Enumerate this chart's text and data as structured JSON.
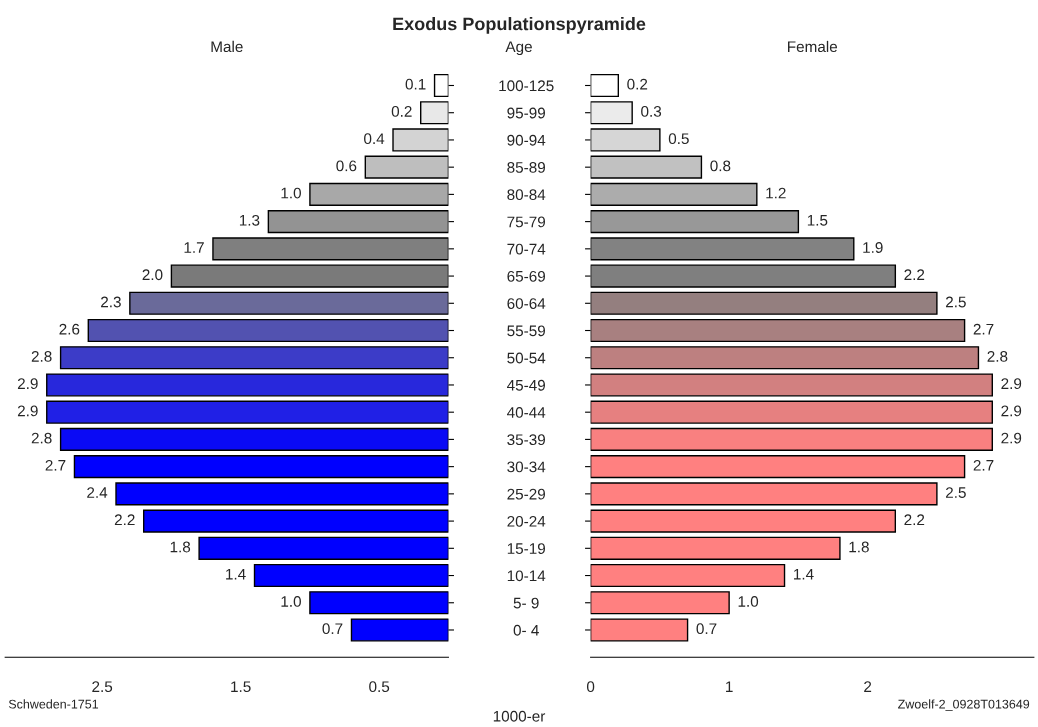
{
  "chart_data": [
    {
      "type": "bar",
      "orientation": "horizontal",
      "title": "Exodus Populationspyramide",
      "subtitle": "Male",
      "ylabel": "Age",
      "xlabel": "1000-er",
      "annotations": [
        "Schweden-1751"
      ],
      "categories": [
        "100-125",
        "95-99",
        "90-94",
        "85-89",
        "80-84",
        "75-79",
        "70-74",
        "65-69",
        "60-64",
        "55-59",
        "50-54",
        "45-49",
        "40-44",
        "35-39",
        "30-34",
        "25-29",
        "20-24",
        "15-19",
        "10-14",
        "5- 9",
        "0- 4"
      ],
      "values": [
        0.1,
        0.2,
        0.4,
        0.6,
        1.0,
        1.3,
        1.7,
        2.0,
        2.3,
        2.6,
        2.8,
        2.9,
        2.9,
        2.8,
        2.7,
        2.4,
        2.2,
        1.8,
        1.4,
        1.0,
        0.7
      ],
      "value_labels": [
        "0.1",
        "0.2",
        "0.4",
        "0.6",
        "1.0",
        "1.3",
        "1.7",
        "2.0",
        "2.3",
        "2.6",
        "2.8",
        "2.9",
        "2.9",
        "2.8",
        "2.7",
        "2.4",
        "2.2",
        "1.8",
        "1.4",
        "1.0",
        "0.7"
      ],
      "colors": [
        "#ffffff",
        "#e8e8e8",
        "#d3d3d3",
        "#bebebe",
        "#a8a8a8",
        "#939393",
        "#7f7f7f",
        "#7a7a7a",
        "#6a6a9a",
        "#5252b0",
        "#3c3cc8",
        "#2828dc",
        "#2020e6",
        "#0a0af5",
        "#0000ff",
        "#0000ff",
        "#0000ff",
        "#0000ff",
        "#0000ff",
        "#0000ff",
        "#0000ff"
      ],
      "xlim": [
        3.2,
        0
      ],
      "xticks": [
        2.5,
        1.5,
        0.5
      ]
    },
    {
      "type": "bar",
      "orientation": "horizontal",
      "subtitle": "Female",
      "annotations": [
        "Zwoelf-2_0928T013649"
      ],
      "tick_labels": "x",
      "values": [
        0.2,
        0.3,
        0.5,
        0.8,
        1.2,
        1.5,
        1.9,
        2.2,
        2.5,
        2.7,
        2.8,
        2.9,
        2.9,
        2.9,
        2.7,
        2.5,
        2.2,
        1.8,
        1.4,
        1.0,
        0.7
      ],
      "value_labels": [
        "0.2",
        "0.3",
        "0.5",
        "0.8",
        "1.2",
        "1.5",
        "1.9",
        "2.2",
        "2.5",
        "2.7",
        "2.8",
        "2.9",
        "2.9",
        "2.9",
        "2.7",
        "2.5",
        "2.2",
        "1.8",
        "1.4",
        "1.0",
        "0.7"
      ],
      "colors": [
        "#ffffff",
        "#ebebeb",
        "#d6d6d6",
        "#c1c1c1",
        "#acacac",
        "#989898",
        "#828282",
        "#7f7f7f",
        "#947f7f",
        "#a88080",
        "#bd8080",
        "#d28080",
        "#e68080",
        "#f98080",
        "#ff8080",
        "#ff8080",
        "#ff8080",
        "#ff8080",
        "#ff8080",
        "#ff8080",
        "#ff8080"
      ],
      "xlim": [
        0,
        3.2
      ],
      "xticks": [
        0,
        1,
        2
      ]
    }
  ]
}
